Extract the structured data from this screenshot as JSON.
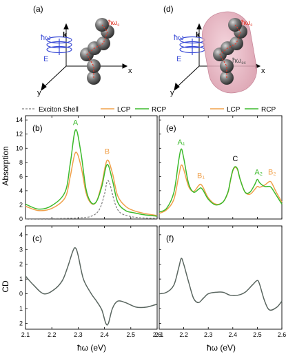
{
  "figure": {
    "panel_labels": [
      "(a)",
      "(b)",
      "(c)",
      "(d)",
      "(e)",
      "(f)"
    ],
    "xlabel": "ħω (eV)",
    "ylabel_top": "Absorption",
    "ylabel_bottom": "CD",
    "x_ticks": [
      "2.1",
      "2.2",
      "2.3",
      "2.4",
      "2.5",
      "2.6"
    ],
    "y_ticks_top": [
      "0",
      "2",
      "4",
      "6",
      "8",
      "10",
      "12",
      "14"
    ],
    "y_ticks_bottom": [
      "0",
      "1",
      "2",
      "3",
      "4",
      "1",
      "2"
    ],
    "colors": {
      "lcp": "#f0a04a",
      "rcp": "#3cba2c",
      "shell": "#7f7f7f",
      "cd": "#5a6660",
      "photon": "#3a4bd6",
      "annot": "#e03a2a",
      "shell_fill": "#e8b7c3"
    }
  },
  "schematic": {
    "a": {
      "hw": "ħω",
      "k": "k",
      "E": "E",
      "x": "x",
      "y": "y",
      "hw_c": "ħω",
      "hw_c_sub": "c"
    },
    "d": {
      "hw": "ħω",
      "k": "k",
      "E": "E",
      "x": "x",
      "y": "y",
      "hw_c": "ħω",
      "hw_c_sub": "c",
      "hw_ex": "ħω",
      "hw_ex_sub": "ex"
    }
  },
  "legend_top_left": [
    "Exciton Shell",
    "LCP",
    "RCP"
  ],
  "legend_top_right": [
    "LCP",
    "RCP"
  ],
  "peak_labels": {
    "b": [
      "A",
      "B"
    ],
    "e": [
      "A₁",
      "B₁",
      "C",
      "A₂",
      "B₂"
    ]
  },
  "chart_data": [
    {
      "panel": "(b)",
      "type": "line",
      "xlabel": "ħω (eV)",
      "ylabel": "Absorption",
      "xlim": [
        2.1,
        2.6
      ],
      "ylim": [
        0,
        14.6
      ],
      "grid": false,
      "legend": "top",
      "series": [
        {
          "name": "Exciton Shell",
          "style": "dashed",
          "x": [
            2.1,
            2.2,
            2.3,
            2.35,
            2.38,
            2.4,
            2.41,
            2.42,
            2.44,
            2.46,
            2.5,
            2.55,
            2.6
          ],
          "y": [
            0.02,
            0.05,
            0.15,
            0.4,
            1.3,
            3.5,
            5.3,
            5.0,
            2.2,
            0.9,
            0.35,
            0.15,
            0.08
          ]
        },
        {
          "name": "LCP",
          "x": [
            2.1,
            2.15,
            2.2,
            2.25,
            2.27,
            2.29,
            2.31,
            2.33,
            2.35,
            2.37,
            2.39,
            2.41,
            2.43,
            2.45,
            2.48,
            2.51,
            2.55,
            2.6
          ],
          "y": [
            1.8,
            1.2,
            1.5,
            3.0,
            6.0,
            9.4,
            7.6,
            3.7,
            2.2,
            2.5,
            5.0,
            8.3,
            6.5,
            3.3,
            1.8,
            1.2,
            0.8,
            0.5
          ]
        },
        {
          "name": "RCP",
          "x": [
            2.1,
            2.15,
            2.2,
            2.25,
            2.27,
            2.29,
            2.31,
            2.33,
            2.35,
            2.37,
            2.39,
            2.41,
            2.43,
            2.45,
            2.48,
            2.51,
            2.55,
            2.6
          ],
          "y": [
            2.1,
            1.4,
            1.9,
            3.8,
            7.8,
            12.6,
            9.5,
            4.2,
            2.3,
            2.5,
            4.6,
            7.7,
            5.5,
            2.4,
            1.2,
            0.9,
            0.6,
            0.4
          ]
        }
      ],
      "labels": [
        {
          "text": "A",
          "x": 2.29,
          "y": 13.3,
          "color": "rcp"
        },
        {
          "text": "B",
          "x": 2.41,
          "y": 9.2,
          "color": "lcp"
        }
      ]
    },
    {
      "panel": "(c)",
      "type": "line",
      "xlabel": "ħω (eV)",
      "ylabel": "CD",
      "xlim": [
        2.1,
        2.6
      ],
      "ylim": [
        -2.4,
        4.6
      ],
      "grid": false,
      "series": [
        {
          "name": "CD",
          "x": [
            2.1,
            2.13,
            2.17,
            2.21,
            2.24,
            2.26,
            2.28,
            2.29,
            2.3,
            2.32,
            2.35,
            2.37,
            2.39,
            2.405,
            2.415,
            2.43,
            2.45,
            2.48,
            2.52,
            2.56,
            2.6
          ],
          "y": [
            1.2,
            0.6,
            0.0,
            0.3,
            0.9,
            1.8,
            2.9,
            3.1,
            2.6,
            1.0,
            0.0,
            -0.5,
            -1.1,
            -2.0,
            -2.0,
            -1.0,
            -0.5,
            -0.6,
            -0.9,
            -0.9,
            -0.7
          ]
        }
      ]
    },
    {
      "panel": "(e)",
      "type": "line",
      "xlim": [
        2.1,
        2.6
      ],
      "ylim": [
        0,
        14.6
      ],
      "grid": false,
      "legend": "top",
      "series": [
        {
          "name": "LCP",
          "x": [
            2.1,
            2.13,
            2.16,
            2.18,
            2.19,
            2.2,
            2.22,
            2.24,
            2.26,
            2.27,
            2.28,
            2.3,
            2.33,
            2.36,
            2.38,
            2.39,
            2.4,
            2.41,
            2.42,
            2.43,
            2.45,
            2.47,
            2.49,
            2.5,
            2.51,
            2.53,
            2.55,
            2.56,
            2.58,
            2.6
          ],
          "y": [
            0.8,
            1.3,
            2.8,
            6.2,
            7.6,
            7.0,
            4.6,
            3.9,
            4.7,
            4.9,
            4.4,
            3.0,
            2.1,
            2.4,
            3.7,
            5.3,
            6.8,
            7.3,
            6.9,
            5.6,
            3.8,
            3.5,
            4.2,
            4.6,
            4.5,
            4.8,
            5.3,
            5.0,
            3.6,
            2.4
          ]
        },
        {
          "name": "RCP",
          "x": [
            2.1,
            2.13,
            2.16,
            2.18,
            2.19,
            2.2,
            2.22,
            2.24,
            2.26,
            2.27,
            2.28,
            2.3,
            2.33,
            2.36,
            2.38,
            2.39,
            2.4,
            2.41,
            2.42,
            2.43,
            2.45,
            2.47,
            2.49,
            2.5,
            2.51,
            2.53,
            2.55,
            2.56,
            2.58,
            2.6
          ],
          "y": [
            1.0,
            1.5,
            3.8,
            8.4,
            9.9,
            8.6,
            5.0,
            3.8,
            4.2,
            4.4,
            4.0,
            2.8,
            2.0,
            2.4,
            3.8,
            5.4,
            6.9,
            7.4,
            7.0,
            5.6,
            3.8,
            3.8,
            4.9,
            5.6,
            5.1,
            4.6,
            4.6,
            4.3,
            3.2,
            2.1
          ]
        }
      ],
      "labels": [
        {
          "text": "A₁",
          "x": 2.19,
          "y": 10.5,
          "color": "rcp"
        },
        {
          "text": "B₁",
          "x": 2.27,
          "y": 5.8,
          "color": "lcp"
        },
        {
          "text": "C",
          "x": 2.41,
          "y": 8.2,
          "color": "black"
        },
        {
          "text": "A₂",
          "x": 2.505,
          "y": 6.3,
          "color": "rcp"
        },
        {
          "text": "B₂",
          "x": 2.56,
          "y": 6.3,
          "color": "lcp"
        }
      ]
    },
    {
      "panel": "(f)",
      "type": "line",
      "xlim": [
        2.1,
        2.6
      ],
      "ylim": [
        -2.4,
        4.6
      ],
      "grid": false,
      "series": [
        {
          "name": "CD",
          "x": [
            2.1,
            2.13,
            2.16,
            2.18,
            2.19,
            2.2,
            2.22,
            2.24,
            2.26,
            2.28,
            2.3,
            2.33,
            2.36,
            2.39,
            2.42,
            2.45,
            2.48,
            2.5,
            2.51,
            2.53,
            2.55,
            2.58,
            2.6
          ],
          "y": [
            0.0,
            0.1,
            0.6,
            1.8,
            2.4,
            2.0,
            0.8,
            -0.3,
            -0.6,
            -0.3,
            0.0,
            0.1,
            0.1,
            -0.1,
            -0.1,
            0.1,
            0.6,
            0.9,
            0.6,
            -0.5,
            -1.1,
            -0.9,
            -0.5
          ]
        }
      ]
    }
  ]
}
